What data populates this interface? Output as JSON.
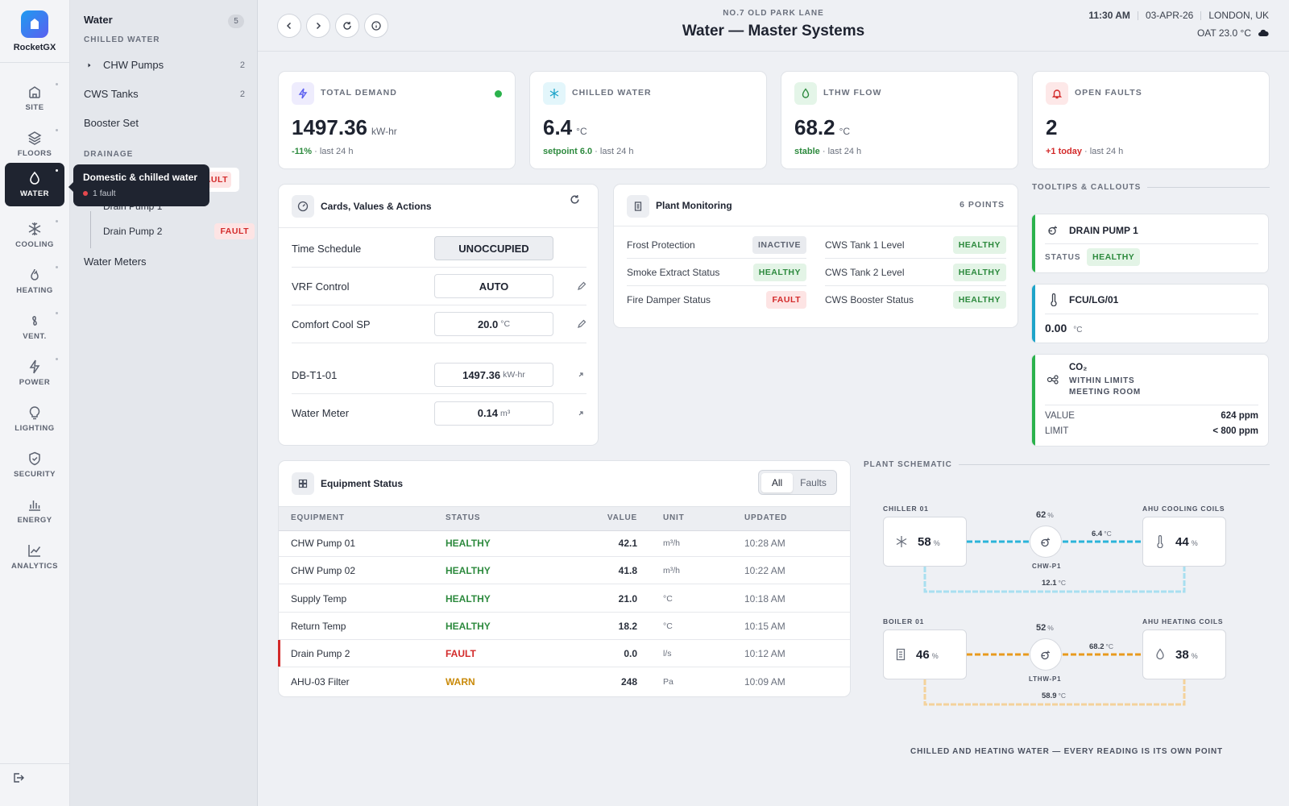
{
  "brand": {
    "name": "RocketGX"
  },
  "rail": {
    "items": [
      {
        "label": "SITE",
        "icon": "building-icon"
      },
      {
        "label": "FLOORS",
        "icon": "layers-icon"
      },
      {
        "label": "WATER",
        "icon": "droplet-icon",
        "active": true
      },
      {
        "label": "COOLING",
        "icon": "snowflake-icon"
      },
      {
        "label": "HEATING",
        "icon": "flame-icon"
      },
      {
        "label": "VENT.",
        "icon": "fan-icon"
      },
      {
        "label": "POWER",
        "icon": "bolt-icon"
      },
      {
        "label": "LIGHTING",
        "icon": "bulb-icon"
      },
      {
        "label": "SECURITY",
        "icon": "shield-icon"
      },
      {
        "label": "ENERGY",
        "icon": "bar-chart-icon"
      },
      {
        "label": "ANALYTICS",
        "icon": "trend-chart-icon"
      }
    ]
  },
  "tooltip": {
    "title": "Domestic & chilled water",
    "sub": "1 fault"
  },
  "subnav": {
    "title": "Water",
    "count": "5",
    "sections": {
      "chilled": "CHILLED WATER",
      "drainage": "DRAINAGE"
    },
    "items": {
      "chw_pumps": {
        "label": "CHW Pumps",
        "count": "2"
      },
      "cws_tanks": {
        "label": "CWS Tanks",
        "count": "2"
      },
      "booster": {
        "label": "Booster Set"
      },
      "drain_fault": "FAULT",
      "drain1": {
        "label": "Drain Pump 1"
      },
      "drain2": {
        "label": "Drain Pump 2",
        "tag": "FAULT"
      },
      "meters": {
        "label": "Water Meters"
      }
    }
  },
  "header": {
    "location": "NO.7 OLD PARK LANE",
    "title": "Water — Master Systems",
    "time": "11:30 AM",
    "date": "03-APR-26",
    "city": "LONDON, UK",
    "oat": "OAT 23.0 °C"
  },
  "kpis": [
    {
      "label": "TOTAL DEMAND",
      "value": "1497.36",
      "unit": "kW-hr",
      "delta": "-11%",
      "foot": " · last 24 h",
      "icon": "bolt-icon"
    },
    {
      "label": "CHILLED WATER",
      "value": "6.4",
      "unit": "°C",
      "delta": "setpoint 6.0",
      "foot": " · last 24 h",
      "icon": "snowflake-icon"
    },
    {
      "label": "LTHW FLOW",
      "value": "68.2",
      "unit": "°C",
      "delta": "stable",
      "foot": " · last 24 h",
      "icon": "droplet-icon"
    },
    {
      "label": "OPEN FAULTS",
      "value": "2",
      "unit": "",
      "delta": "+1 today",
      "foot": " · last 24 h",
      "icon": "bell-icon"
    }
  ],
  "cards_values": {
    "title": "Cards, Values & Actions",
    "rows": [
      {
        "label": "Time Schedule",
        "value": "UNOCCUPIED",
        "unit": ""
      },
      {
        "label": "VRF Control",
        "value": "AUTO",
        "unit": ""
      },
      {
        "label": "Comfort Cool SP",
        "value": "20.0",
        "unit": "°C"
      },
      {
        "label": "DB-T1-01",
        "value": "1497.36",
        "unit": "kW-hr"
      },
      {
        "label": "Water Meter",
        "value": "0.14",
        "unit": "m³"
      }
    ]
  },
  "plant": {
    "title": "Plant Monitoring",
    "points": "6 POINTS",
    "rows": [
      {
        "label": "Frost Protection",
        "status": "INACTIVE"
      },
      {
        "label": "CWS Tank 1 Level",
        "status": "HEALTHY"
      },
      {
        "label": "Smoke Extract Status",
        "status": "HEALTHY"
      },
      {
        "label": "CWS Tank 2 Level",
        "status": "HEALTHY"
      },
      {
        "label": "Fire Damper Status",
        "status": "FAULT"
      },
      {
        "label": "CWS Booster Status",
        "status": "HEALTHY"
      }
    ]
  },
  "callouts": {
    "section": "TOOLTIPS & CALLOUTS",
    "drain": {
      "title": "DRAIN PUMP 1",
      "status_label": "STATUS",
      "status": "HEALTHY"
    },
    "fcu": {
      "title": "FCU/LG/01",
      "value": "0.00",
      "unit": "°C"
    },
    "co2": {
      "title": "CO₂",
      "state": "WITHIN LIMITS",
      "room": "MEETING ROOM",
      "value_label": "VALUE",
      "value": "624 ppm",
      "limit_label": "LIMIT",
      "limit": "< 800 ppm"
    }
  },
  "equipment": {
    "title": "Equipment Status",
    "filter_all": "All",
    "filter_faults": "Faults",
    "columns": [
      "EQUIPMENT",
      "STATUS",
      "VALUE",
      "UNIT",
      "UPDATED"
    ],
    "rows": [
      {
        "name": "CHW Pump 01",
        "status": "HEALTHY",
        "value": "42.1",
        "unit": "m³/h",
        "updated": "10:28 AM"
      },
      {
        "name": "CHW Pump 02",
        "status": "HEALTHY",
        "value": "41.8",
        "unit": "m³/h",
        "updated": "10:22 AM"
      },
      {
        "name": "Supply Temp",
        "status": "HEALTHY",
        "value": "21.0",
        "unit": "°C",
        "updated": "10:18 AM"
      },
      {
        "name": "Return Temp",
        "status": "HEALTHY",
        "value": "18.2",
        "unit": "°C",
        "updated": "10:15 AM"
      },
      {
        "name": "Drain Pump 2",
        "status": "FAULT",
        "value": "0.0",
        "unit": "l/s",
        "updated": "10:12 AM"
      },
      {
        "name": "AHU-03 Filter",
        "status": "WARN",
        "value": "248",
        "unit": "Pa",
        "updated": "10:09 AM"
      }
    ]
  },
  "schematic": {
    "section": "PLANT SCHEMATIC",
    "chiller": {
      "label": "CHILLER 01",
      "value": "58",
      "unit": "%"
    },
    "chw_pump": {
      "label": "CHW-P1",
      "value": "62",
      "unit": "%"
    },
    "ahu_cool": {
      "label": "AHU COOLING COILS",
      "value": "44",
      "unit": "%"
    },
    "chw_flow": {
      "value": "6.4",
      "unit": "°C"
    },
    "chw_return": {
      "value": "12.1",
      "unit": "°C"
    },
    "boiler": {
      "label": "BOILER 01",
      "value": "46",
      "unit": "%"
    },
    "lthw_pump": {
      "label": "LTHW-P1",
      "value": "52",
      "unit": "%"
    },
    "ahu_heat": {
      "label": "AHU HEATING COILS",
      "value": "38",
      "unit": "%"
    },
    "lthw_flow": {
      "value": "68.2",
      "unit": "°C"
    },
    "lthw_return": {
      "value": "58.9",
      "unit": "°C"
    },
    "caption": "CHILLED AND HEATING WATER — EVERY READING IS ITS OWN POINT"
  },
  "colors": {
    "accent": "#5b5ff0",
    "healthy": "#2d8a3e",
    "fault": "#d32a2a",
    "warn": "#c98a0a",
    "chw_pipe": "#2bb4d9",
    "lthw_pipe": "#e89a1e"
  }
}
